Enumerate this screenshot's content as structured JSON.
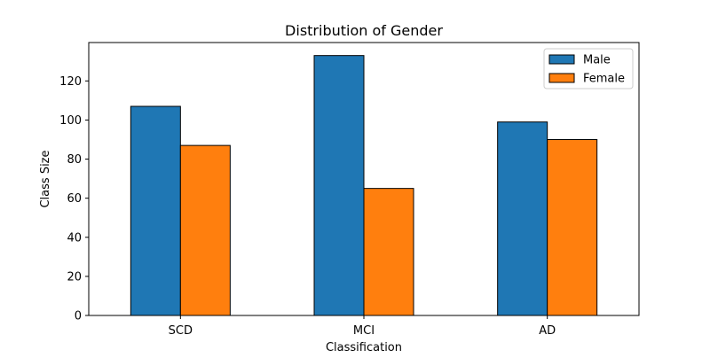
{
  "chart_data": {
    "type": "bar",
    "title": "Distribution of Gender",
    "xlabel": "Classification",
    "ylabel": "Class Size",
    "categories": [
      "SCD",
      "MCI",
      "AD"
    ],
    "series": [
      {
        "name": "Male",
        "values": [
          107,
          133,
          99
        ],
        "color": "#1f77b4"
      },
      {
        "name": "Female",
        "values": [
          87,
          65,
          90
        ],
        "color": "#ff7f0e"
      }
    ],
    "ylim": [
      0,
      139.65
    ],
    "yticks": [
      0,
      20,
      40,
      60,
      80,
      100,
      120
    ],
    "grid": false,
    "legend_position": "top-right",
    "bar_edge_color": "#000000"
  }
}
